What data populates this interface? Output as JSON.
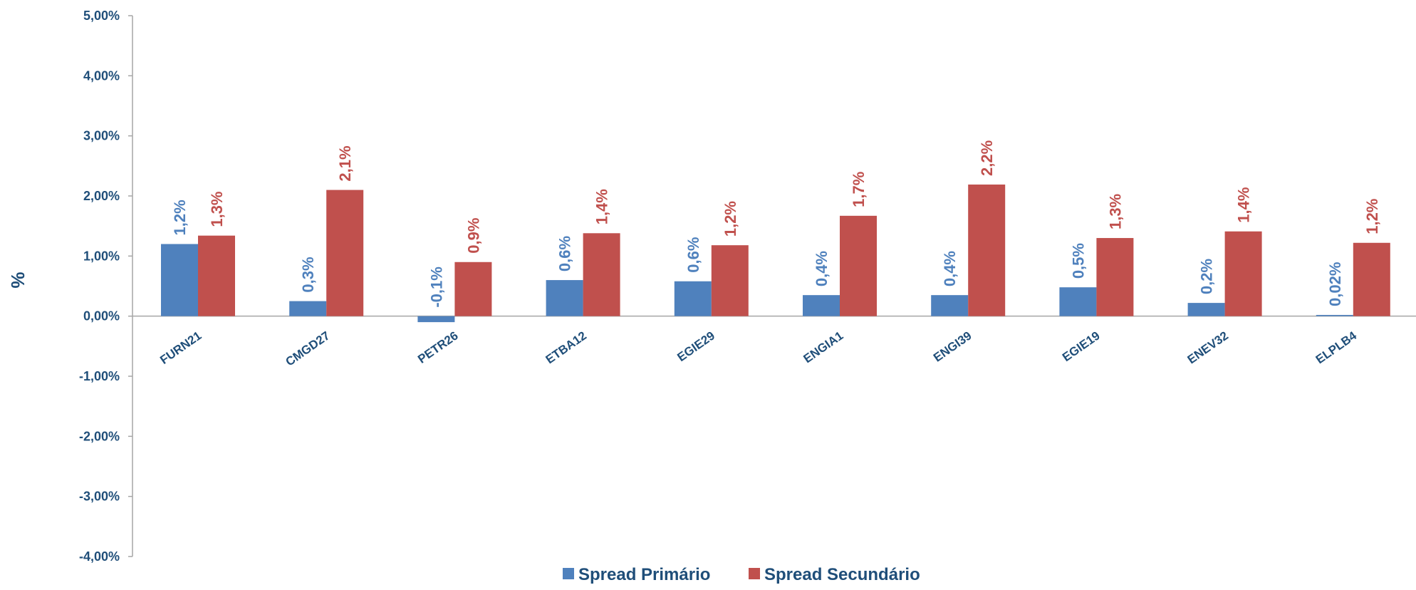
{
  "chart_data": {
    "type": "bar",
    "categories": [
      "FURN21",
      "CMGD27",
      "PETR26",
      "ETBA12",
      "EGIE29",
      "ENGIA1",
      "ENGI39",
      "EGIE19",
      "ENEV32",
      "ELPLB4"
    ],
    "series": [
      {
        "name": "Spread Primário",
        "color": "#4f81bd",
        "values": [
          1.2,
          0.25,
          -0.1,
          0.6,
          0.58,
          0.35,
          0.35,
          0.48,
          0.22,
          0.02
        ],
        "labels": [
          "1,2%",
          "0,3%",
          "-0,1%",
          "0,6%",
          "0,6%",
          "0,4%",
          "0,4%",
          "0,5%",
          "0,2%",
          "0,02%"
        ]
      },
      {
        "name": "Spread Secundário",
        "color": "#c0504d",
        "values": [
          1.34,
          2.1,
          0.9,
          1.38,
          1.18,
          1.67,
          2.19,
          1.3,
          1.41,
          1.22
        ],
        "labels": [
          "1,3%",
          "2,1%",
          "0,9%",
          "1,4%",
          "1,2%",
          "1,7%",
          "2,2%",
          "1,3%",
          "1,4%",
          "1,2%"
        ]
      }
    ],
    "title": "",
    "xlabel": "",
    "ylabel": "%",
    "ylim": [
      -4,
      5
    ],
    "yticks": [
      5,
      4,
      3,
      2,
      1,
      0,
      -1,
      -2,
      -3,
      -4
    ],
    "ytick_labels": [
      "5,00%",
      "4,00%",
      "3,00%",
      "2,00%",
      "1,00%",
      "0,00%",
      "-1,00%",
      "-2,00%",
      "-3,00%",
      "-4,00%"
    ],
    "grid": false,
    "legend_position": "bottom-center"
  }
}
